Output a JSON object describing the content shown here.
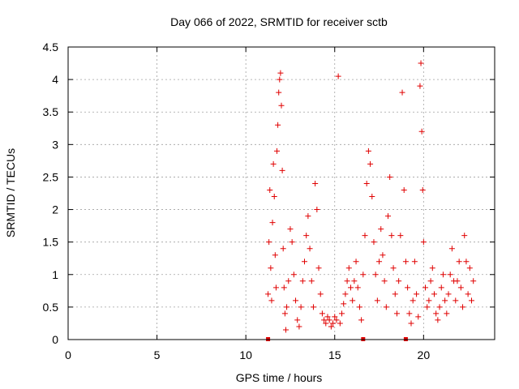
{
  "chart_data": {
    "type": "scatter",
    "title": "Day 066 of 2022, SRMTID for receiver sctb",
    "xlabel": "GPS time / hours",
    "ylabel": "SRMTID / TECUs",
    "xlim": [
      0,
      24
    ],
    "ylim": [
      0,
      4.5
    ],
    "x_ticks": [
      0,
      5,
      10,
      15,
      20
    ],
    "x_tick_labels": [
      "0",
      "5",
      "10",
      "15",
      "20"
    ],
    "y_ticks": [
      0,
      0.5,
      1,
      1.5,
      2,
      2.5,
      3,
      3.5,
      4,
      4.5
    ],
    "y_tick_labels": [
      "0",
      "0.5",
      "1",
      "1.5",
      "2",
      "2.5",
      "3",
      "3.5",
      "4",
      "4.5"
    ],
    "grid": true,
    "marker": "+",
    "color": "#e00000",
    "data_start_hour": 11.2,
    "data_end_hour": 22.8,
    "gap_markers_x": [
      11.25,
      16.6,
      19.0
    ],
    "series": [
      {
        "name": "SRMTID",
        "points": [
          [
            11.25,
            0.7
          ],
          [
            11.3,
            1.5
          ],
          [
            11.35,
            2.3
          ],
          [
            11.4,
            1.1
          ],
          [
            11.45,
            0.6
          ],
          [
            11.5,
            1.8
          ],
          [
            11.55,
            2.7
          ],
          [
            11.6,
            2.2
          ],
          [
            11.65,
            1.3
          ],
          [
            11.7,
            0.8
          ],
          [
            11.75,
            2.9
          ],
          [
            11.8,
            3.3
          ],
          [
            11.85,
            3.8
          ],
          [
            11.9,
            4.0
          ],
          [
            11.95,
            4.1
          ],
          [
            12.0,
            3.6
          ],
          [
            12.05,
            2.6
          ],
          [
            12.1,
            1.4
          ],
          [
            12.15,
            0.8
          ],
          [
            12.2,
            0.4
          ],
          [
            12.25,
            0.15
          ],
          [
            12.3,
            0.5
          ],
          [
            12.4,
            0.9
          ],
          [
            12.5,
            1.7
          ],
          [
            12.6,
            1.5
          ],
          [
            12.7,
            1.0
          ],
          [
            12.8,
            0.6
          ],
          [
            12.9,
            0.3
          ],
          [
            13.0,
            0.2
          ],
          [
            13.1,
            0.5
          ],
          [
            13.2,
            0.9
          ],
          [
            13.3,
            1.2
          ],
          [
            13.4,
            1.6
          ],
          [
            13.5,
            1.9
          ],
          [
            13.6,
            1.4
          ],
          [
            13.7,
            0.9
          ],
          [
            13.8,
            0.5
          ],
          [
            13.9,
            2.4
          ],
          [
            14.0,
            2.0
          ],
          [
            14.1,
            1.1
          ],
          [
            14.2,
            0.7
          ],
          [
            14.3,
            0.4
          ],
          [
            14.4,
            0.3
          ],
          [
            14.5,
            0.25
          ],
          [
            14.6,
            0.35
          ],
          [
            14.7,
            0.3
          ],
          [
            14.8,
            0.2
          ],
          [
            14.9,
            0.25
          ],
          [
            15.0,
            0.35
          ],
          [
            15.1,
            0.3
          ],
          [
            15.2,
            4.05
          ],
          [
            15.3,
            0.25
          ],
          [
            15.4,
            0.4
          ],
          [
            15.5,
            0.55
          ],
          [
            15.6,
            0.7
          ],
          [
            15.7,
            0.9
          ],
          [
            15.8,
            1.1
          ],
          [
            15.9,
            0.8
          ],
          [
            16.0,
            0.6
          ],
          [
            16.1,
            0.9
          ],
          [
            16.2,
            1.2
          ],
          [
            16.3,
            0.8
          ],
          [
            16.4,
            0.5
          ],
          [
            16.5,
            0.3
          ],
          [
            16.6,
            1.0
          ],
          [
            16.7,
            1.6
          ],
          [
            16.8,
            2.4
          ],
          [
            16.9,
            2.9
          ],
          [
            17.0,
            2.7
          ],
          [
            17.1,
            2.2
          ],
          [
            17.2,
            1.5
          ],
          [
            17.3,
            1.0
          ],
          [
            17.4,
            0.6
          ],
          [
            17.5,
            1.2
          ],
          [
            17.6,
            1.7
          ],
          [
            17.7,
            1.3
          ],
          [
            17.8,
            0.9
          ],
          [
            17.9,
            0.5
          ],
          [
            18.0,
            1.9
          ],
          [
            18.1,
            2.5
          ],
          [
            18.2,
            1.6
          ],
          [
            18.3,
            1.1
          ],
          [
            18.4,
            0.7
          ],
          [
            18.5,
            0.4
          ],
          [
            18.6,
            0.9
          ],
          [
            18.7,
            1.6
          ],
          [
            18.8,
            3.8
          ],
          [
            18.9,
            2.3
          ],
          [
            19.0,
            1.2
          ],
          [
            19.1,
            0.8
          ],
          [
            19.2,
            0.4
          ],
          [
            19.3,
            0.25
          ],
          [
            19.4,
            0.6
          ],
          [
            19.5,
            1.2
          ],
          [
            19.6,
            0.7
          ],
          [
            19.7,
            0.35
          ],
          [
            19.8,
            3.9
          ],
          [
            19.85,
            4.25
          ],
          [
            19.9,
            3.2
          ],
          [
            19.95,
            2.3
          ],
          [
            20.0,
            1.5
          ],
          [
            20.1,
            0.8
          ],
          [
            20.2,
            0.5
          ],
          [
            20.3,
            0.6
          ],
          [
            20.4,
            0.9
          ],
          [
            20.5,
            1.1
          ],
          [
            20.6,
            0.7
          ],
          [
            20.7,
            0.4
          ],
          [
            20.8,
            0.3
          ],
          [
            20.9,
            0.5
          ],
          [
            21.0,
            0.8
          ],
          [
            21.1,
            1.0
          ],
          [
            21.2,
            0.6
          ],
          [
            21.3,
            0.4
          ],
          [
            21.4,
            0.7
          ],
          [
            21.5,
            1.0
          ],
          [
            21.6,
            1.4
          ],
          [
            21.7,
            0.9
          ],
          [
            21.8,
            0.6
          ],
          [
            21.9,
            0.9
          ],
          [
            22.0,
            1.2
          ],
          [
            22.1,
            0.8
          ],
          [
            22.2,
            0.5
          ],
          [
            22.3,
            1.6
          ],
          [
            22.4,
            1.2
          ],
          [
            22.5,
            0.7
          ],
          [
            22.6,
            1.1
          ],
          [
            22.7,
            0.6
          ],
          [
            22.8,
            0.9
          ]
        ]
      }
    ]
  }
}
